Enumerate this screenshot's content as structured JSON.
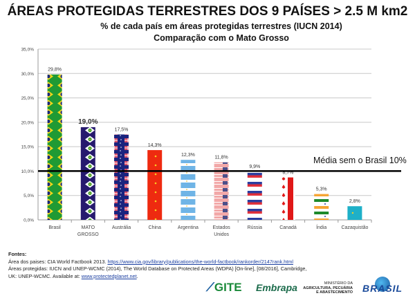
{
  "title": "ÁREAS PROTEGIDAS TERRESTRES DOS 9 PAÍSES > 2.5 M km2",
  "subtitle": "% de cada país em áreas protegidas terrestres (IUCN 2014)",
  "subtitle2": "Comparação com o Mato Grosso",
  "chart_data": {
    "type": "bar",
    "categories": [
      "Brasil",
      "MATO GROSSO",
      "Austrália",
      "China",
      "Argentina",
      "Estados Unidos",
      "Rússia",
      "Canadá",
      "Índia",
      "Cazaquistão"
    ],
    "values": [
      29.8,
      19.0,
      17.5,
      14.3,
      12.3,
      11.8,
      9.9,
      8.7,
      5.3,
      2.8
    ],
    "data_labels": [
      "29,8%",
      "19,0%",
      "17,5%",
      "14,3%",
      "12,3%",
      "11,8%",
      "9,9%",
      "8,7%",
      "5,3%",
      "2,8%"
    ],
    "bar_fills": [
      "brazil-flag",
      "mato-grosso-flag",
      "australia-flag",
      "china-flag",
      "argentina-flag",
      "usa-flag",
      "russia-flag",
      "canada-flag",
      "india-flag",
      "kazakhstan-flag"
    ],
    "ylim": [
      0,
      35
    ],
    "yticks": [
      "0,0%",
      "5,0%",
      "10,0%",
      "15,0%",
      "20,0%",
      "25,0%",
      "30,0%",
      "35,0%"
    ],
    "grid": true,
    "reference_line": {
      "value": 10,
      "label": "Média sem o Brasil 10%",
      "color": "#000000"
    }
  },
  "sources": {
    "heading": "Fontes:",
    "line1_text": "Área dos paises: CIA World Factbook 2013. ",
    "line1_link": "https://www.cia.gov/library/publications/the-world-factbook/rankorder/2147rank.html",
    "line2_text": "Áreas protegidas: IUCN and UNEP-WCMC (2014), The World Database on Protected Areas (WDPA) [On-line], [08/2016], Cambridge,",
    "line3_text": "UK: UNEP-WCMC. Available at: ",
    "line3_link": "www.protectedplanet.net",
    "line3_end": "."
  },
  "logos": {
    "gite": "GITE",
    "embrapa": "Embrapa",
    "ministerio_1": "MINISTÉRIO DA",
    "ministerio_2": "AGRICULTURA, PECUÁRIA",
    "ministerio_3": "E ABASTECIMENTO",
    "brasil": "BRASIL"
  }
}
